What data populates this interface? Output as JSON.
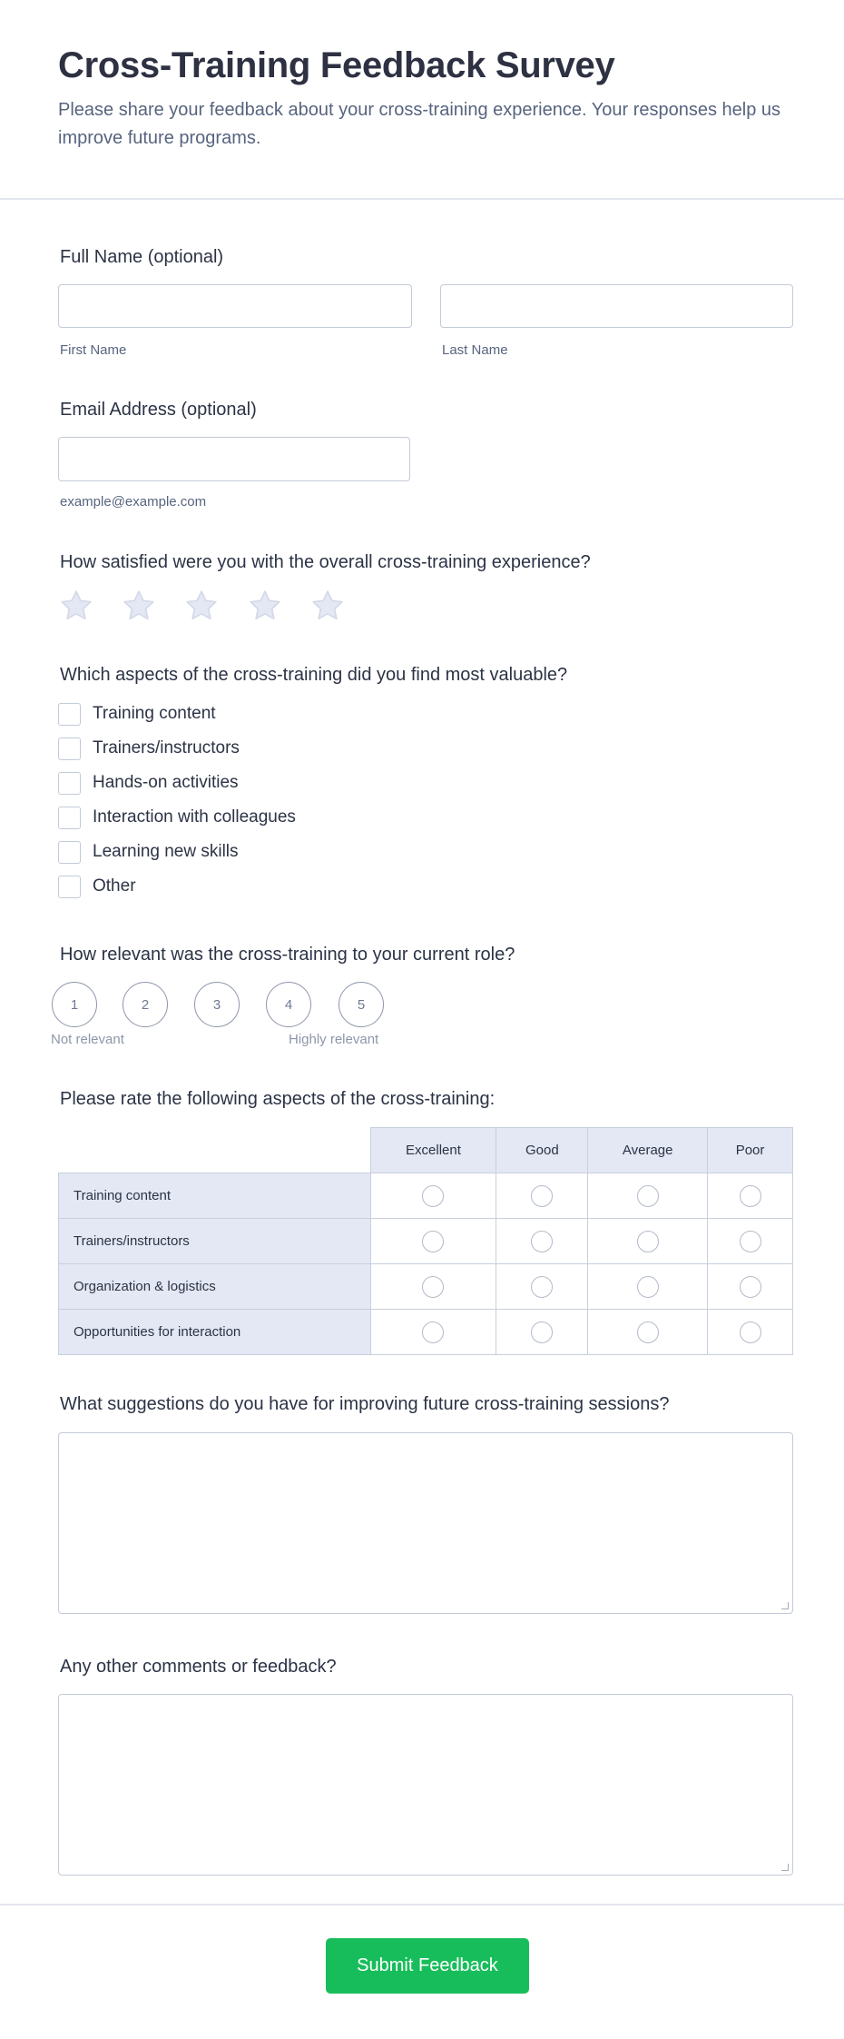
{
  "header": {
    "title": "Cross-Training Feedback Survey",
    "subtitle": "Please share your feedback about your cross-training experience. Your responses help us improve future programs."
  },
  "name": {
    "label": "Full Name (optional)",
    "first_value": "",
    "last_value": "",
    "first_sub": "First Name",
    "last_sub": "Last Name"
  },
  "email": {
    "label": "Email Address (optional)",
    "value": "",
    "sub": "example@example.com"
  },
  "satisfaction": {
    "question": "How satisfied were you with the overall cross-training experience?",
    "max_stars": 5,
    "selected": 0,
    "star_color": "#e3e8f4"
  },
  "aspects": {
    "question": "Which aspects of the cross-training did you find most valuable?",
    "options": [
      "Training content",
      "Trainers/instructors",
      "Hands-on activities",
      "Interaction with colleagues",
      "Learning new skills",
      "Other"
    ]
  },
  "relevance": {
    "question": "How relevant was the cross-training to your current role?",
    "options": [
      "1",
      "2",
      "3",
      "4",
      "5"
    ],
    "low_label": "Not relevant",
    "high_label": "Highly relevant"
  },
  "matrix": {
    "question": "Please rate the following aspects of the cross-training:",
    "columns": [
      "Excellent",
      "Good",
      "Average",
      "Poor"
    ],
    "rows": [
      "Training content",
      "Trainers/instructors",
      "Organization & logistics",
      "Opportunities for interaction"
    ]
  },
  "suggestions": {
    "question": "What suggestions do you have for improving future cross-training sessions?",
    "value": ""
  },
  "comments": {
    "question": "Any other comments or feedback?",
    "value": ""
  },
  "submit": {
    "label": "Submit Feedback",
    "color": "#18bd5b"
  }
}
